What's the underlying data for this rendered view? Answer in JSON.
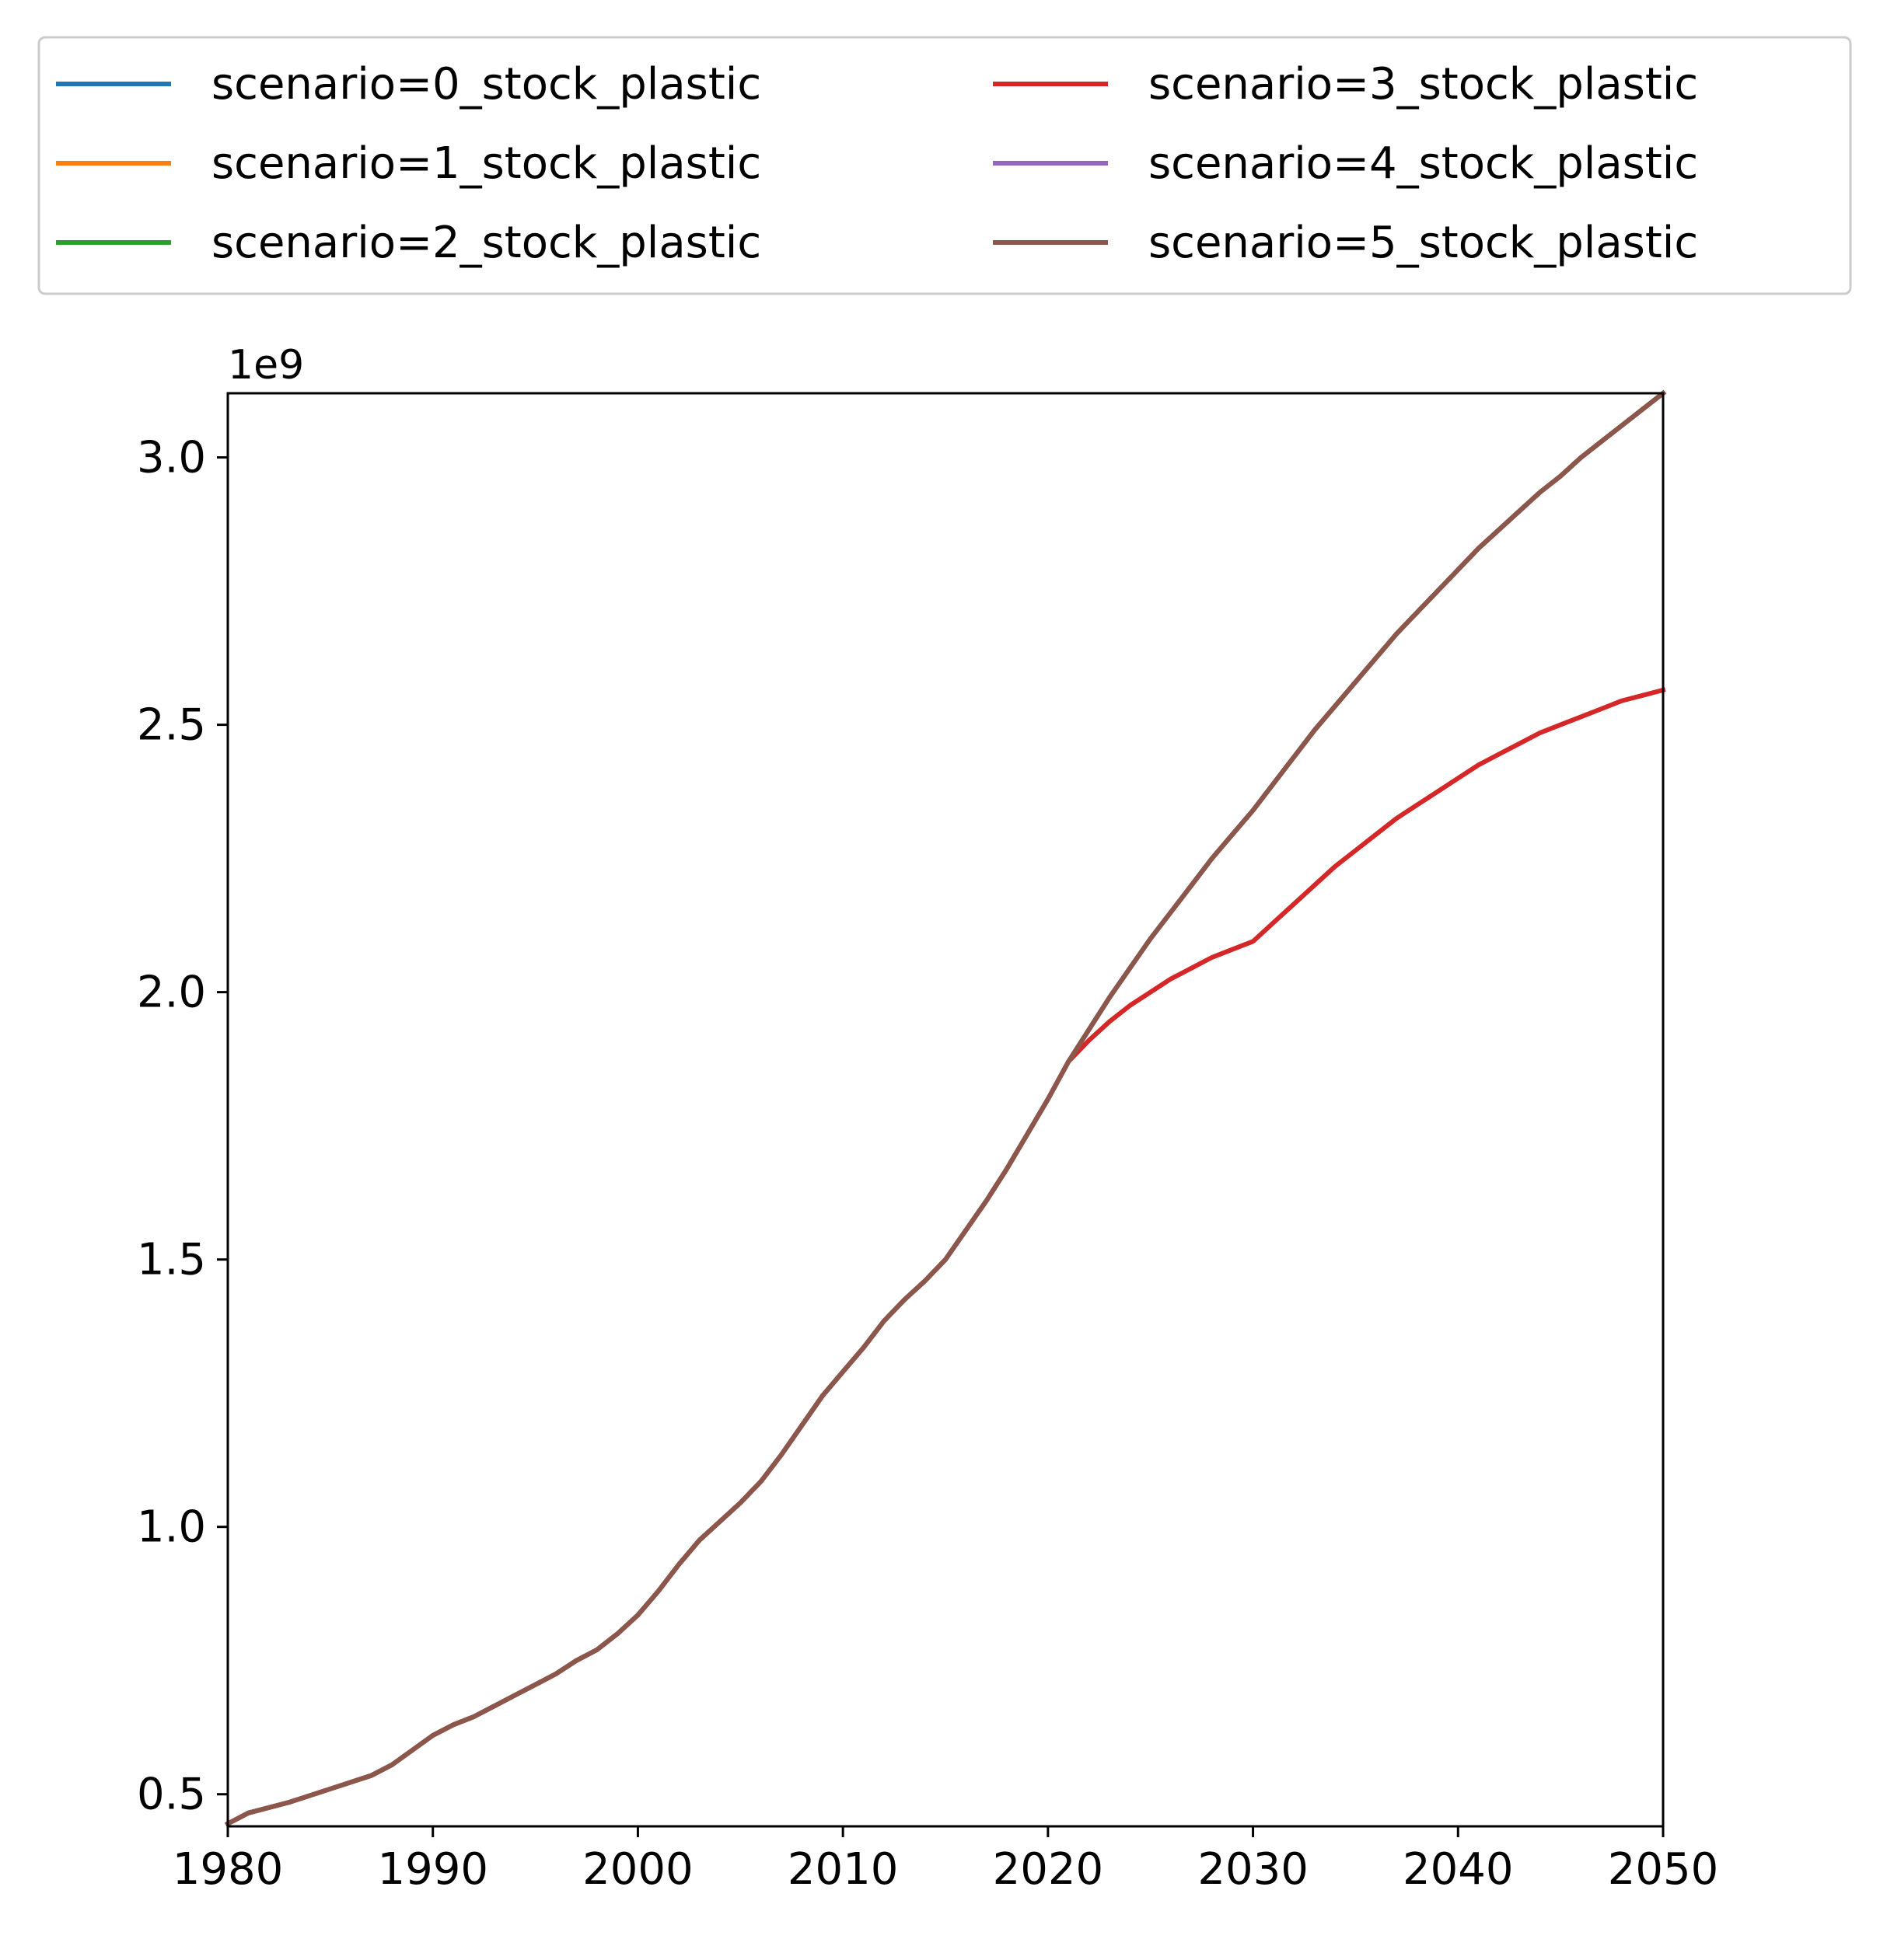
{
  "chart_data": {
    "type": "line",
    "title": "",
    "xlabel": "",
    "ylabel": "",
    "offset_label": "1e9",
    "xlim": [
      1980,
      2050
    ],
    "ylim": [
      0.44,
      3.12
    ],
    "y_unit_scale": 1000000000,
    "xticks": [
      "1980",
      "1990",
      "2000",
      "2010",
      "2020",
      "2030",
      "2040",
      "2050"
    ],
    "yticks": [
      "0.5",
      "1.0",
      "1.5",
      "2.0",
      "2.5",
      "3.0"
    ],
    "grid": false,
    "legend_position": "top, above plot, 2 columns",
    "x": [
      1980,
      1981,
      1983,
      1985,
      1987,
      1988,
      1990,
      1991,
      1992,
      1993,
      1994,
      1995,
      1996,
      1997,
      1998,
      1999,
      2000,
      2001,
      2002,
      2003,
      2004,
      2005,
      2006,
      2007,
      2008,
      2009,
      2010,
      2011,
      2012,
      2013,
      2014,
      2015,
      2016,
      2017,
      2018,
      2019,
      2020,
      2021,
      2022,
      2023,
      2024,
      2025,
      2026,
      2027,
      2028,
      2029,
      2030,
      2031,
      2032,
      2033,
      2034,
      2035,
      2036,
      2037,
      2038,
      2039,
      2040,
      2041,
      2042,
      2043,
      2044,
      2045,
      2046,
      2047,
      2048,
      2049,
      2050
    ],
    "series": [
      {
        "name": "scenario=0_stock_plastic",
        "color": "#1f77b4",
        "values": [
          0.445,
          0.465,
          0.485,
          0.51,
          0.535,
          0.555,
          0.61,
          0.63,
          0.645,
          0.665,
          0.685,
          0.705,
          0.725,
          0.75,
          0.77,
          0.8,
          0.835,
          0.88,
          0.93,
          0.975,
          1.01,
          1.045,
          1.085,
          1.135,
          1.19,
          1.245,
          1.29,
          1.335,
          1.385,
          1.425,
          1.46,
          1.5,
          1.555,
          1.61,
          1.67,
          1.735,
          1.8,
          1.87,
          1.93,
          1.99,
          2.045,
          2.1,
          2.15,
          2.2,
          2.25,
          2.295,
          2.34,
          2.39,
          2.44,
          2.49,
          2.535,
          2.58,
          2.625,
          2.67,
          2.71,
          2.75,
          2.79,
          2.83,
          2.865,
          2.9,
          2.935,
          2.965,
          3.0,
          3.03,
          3.06,
          3.09,
          3.12
        ]
      },
      {
        "name": "scenario=1_stock_plastic",
        "color": "#ff7f0e",
        "values": [
          0.445,
          0.465,
          0.485,
          0.51,
          0.535,
          0.555,
          0.61,
          0.63,
          0.645,
          0.665,
          0.685,
          0.705,
          0.725,
          0.75,
          0.77,
          0.8,
          0.835,
          0.88,
          0.93,
          0.975,
          1.01,
          1.045,
          1.085,
          1.135,
          1.19,
          1.245,
          1.29,
          1.335,
          1.385,
          1.425,
          1.46,
          1.5,
          1.555,
          1.61,
          1.67,
          1.735,
          1.8,
          1.87,
          1.93,
          1.99,
          2.045,
          2.1,
          2.15,
          2.2,
          2.25,
          2.295,
          2.34,
          2.39,
          2.44,
          2.49,
          2.535,
          2.58,
          2.625,
          2.67,
          2.71,
          2.75,
          2.79,
          2.83,
          2.865,
          2.9,
          2.935,
          2.965,
          3.0,
          3.03,
          3.06,
          3.09,
          3.12
        ]
      },
      {
        "name": "scenario=2_stock_plastic",
        "color": "#2ca02c",
        "values": [
          0.445,
          0.465,
          0.485,
          0.51,
          0.535,
          0.555,
          0.61,
          0.63,
          0.645,
          0.665,
          0.685,
          0.705,
          0.725,
          0.75,
          0.77,
          0.8,
          0.835,
          0.88,
          0.93,
          0.975,
          1.01,
          1.045,
          1.085,
          1.135,
          1.19,
          1.245,
          1.29,
          1.335,
          1.385,
          1.425,
          1.46,
          1.5,
          1.555,
          1.61,
          1.67,
          1.735,
          1.8,
          1.87,
          1.93,
          1.99,
          2.045,
          2.1,
          2.15,
          2.2,
          2.25,
          2.295,
          2.34,
          2.39,
          2.44,
          2.49,
          2.535,
          2.58,
          2.625,
          2.67,
          2.71,
          2.75,
          2.79,
          2.83,
          2.865,
          2.9,
          2.935,
          2.965,
          3.0,
          3.03,
          3.06,
          3.09,
          3.12
        ]
      },
      {
        "name": "scenario=3_stock_plastic",
        "color": "#d62728",
        "values": [
          0.445,
          0.465,
          0.485,
          0.51,
          0.535,
          0.555,
          0.61,
          0.63,
          0.645,
          0.665,
          0.685,
          0.705,
          0.725,
          0.75,
          0.77,
          0.8,
          0.835,
          0.88,
          0.93,
          0.975,
          1.01,
          1.045,
          1.085,
          1.135,
          1.19,
          1.245,
          1.29,
          1.335,
          1.385,
          1.425,
          1.46,
          1.5,
          1.555,
          1.61,
          1.67,
          1.735,
          1.8,
          1.87,
          1.91,
          1.945,
          1.975,
          2.0,
          2.025,
          2.045,
          2.065,
          2.08,
          2.095,
          2.13,
          2.165,
          2.2,
          2.235,
          2.265,
          2.295,
          2.325,
          2.35,
          2.375,
          2.4,
          2.425,
          2.445,
          2.465,
          2.485,
          2.5,
          2.515,
          2.53,
          2.545,
          2.555,
          2.565
        ]
      },
      {
        "name": "scenario=4_stock_plastic",
        "color": "#9467bd",
        "values": [
          0.445,
          0.465,
          0.485,
          0.51,
          0.535,
          0.555,
          0.61,
          0.63,
          0.645,
          0.665,
          0.685,
          0.705,
          0.725,
          0.75,
          0.77,
          0.8,
          0.835,
          0.88,
          0.93,
          0.975,
          1.01,
          1.045,
          1.085,
          1.135,
          1.19,
          1.245,
          1.29,
          1.335,
          1.385,
          1.425,
          1.46,
          1.5,
          1.555,
          1.61,
          1.67,
          1.735,
          1.8,
          1.87,
          1.93,
          1.99,
          2.045,
          2.1,
          2.15,
          2.2,
          2.25,
          2.295,
          2.34,
          2.39,
          2.44,
          2.49,
          2.535,
          2.58,
          2.625,
          2.67,
          2.71,
          2.75,
          2.79,
          2.83,
          2.865,
          2.9,
          2.935,
          2.965,
          3.0,
          3.03,
          3.06,
          3.09,
          3.12
        ]
      },
      {
        "name": "scenario=5_stock_plastic",
        "color": "#8c564b",
        "values": [
          0.445,
          0.465,
          0.485,
          0.51,
          0.535,
          0.555,
          0.61,
          0.63,
          0.645,
          0.665,
          0.685,
          0.705,
          0.725,
          0.75,
          0.77,
          0.8,
          0.835,
          0.88,
          0.93,
          0.975,
          1.01,
          1.045,
          1.085,
          1.135,
          1.19,
          1.245,
          1.29,
          1.335,
          1.385,
          1.425,
          1.46,
          1.5,
          1.555,
          1.61,
          1.67,
          1.735,
          1.8,
          1.87,
          1.93,
          1.99,
          2.045,
          2.1,
          2.15,
          2.2,
          2.25,
          2.295,
          2.34,
          2.39,
          2.44,
          2.49,
          2.535,
          2.58,
          2.625,
          2.67,
          2.71,
          2.75,
          2.79,
          2.83,
          2.865,
          2.9,
          2.935,
          2.965,
          3.0,
          3.03,
          3.06,
          3.09,
          3.12
        ]
      }
    ]
  }
}
